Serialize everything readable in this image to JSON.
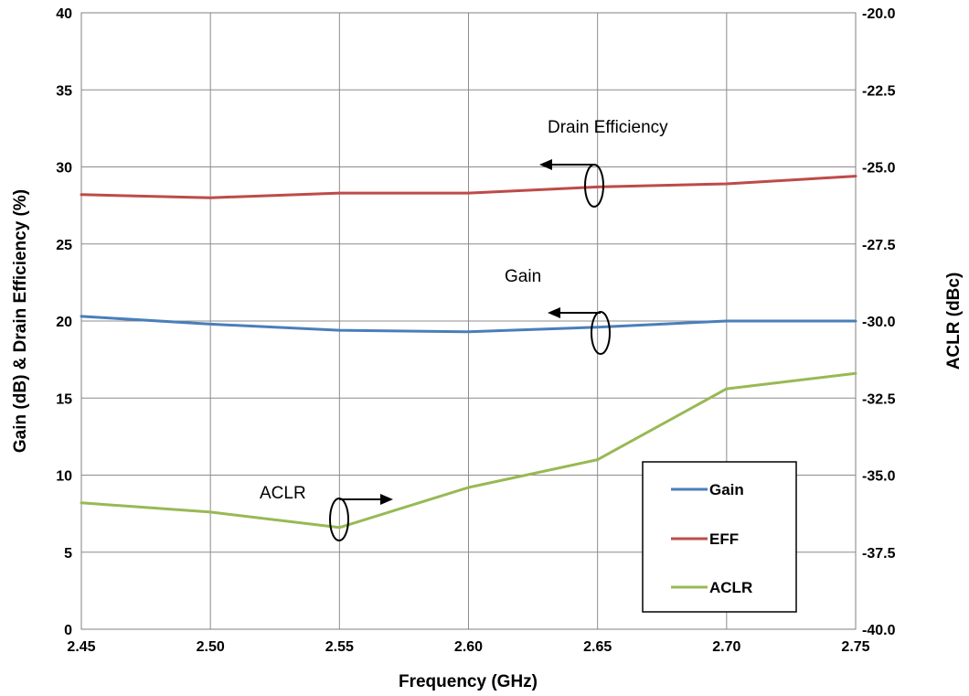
{
  "chart_data": {
    "type": "line",
    "title": "",
    "xlabel": "Frequency (GHz)",
    "ylabel": "Gain (dB) & Drain Efficiency (%)",
    "y2label": "ACLR (dBc)",
    "xlim": [
      2.45,
      2.75
    ],
    "ylim": [
      0,
      40
    ],
    "y2lim": [
      -40.0,
      -20.0
    ],
    "x_ticks": [
      "2.45",
      "2.50",
      "2.55",
      "2.60",
      "2.65",
      "2.70",
      "2.75"
    ],
    "y_ticks": [
      "0",
      "5",
      "10",
      "15",
      "20",
      "25",
      "30",
      "35",
      "40"
    ],
    "y2_ticks": [
      "-40.0",
      "-37.5",
      "-35.0",
      "-32.5",
      "-30.0",
      "-27.5",
      "-25.0",
      "-22.5",
      "-20.0"
    ],
    "grid": true,
    "legend_position": "bottom-right",
    "x": [
      2.45,
      2.5,
      2.55,
      2.6,
      2.65,
      2.7,
      2.75
    ],
    "series": [
      {
        "name": "Gain",
        "axis": "left",
        "color": "#4a7ebb",
        "values": [
          20.3,
          19.8,
          19.4,
          19.3,
          19.6,
          20.0,
          20.0
        ]
      },
      {
        "name": "EFF",
        "axis": "left",
        "color": "#be4b48",
        "values": [
          28.2,
          28.0,
          28.3,
          28.3,
          28.7,
          28.9,
          29.4
        ]
      },
      {
        "name": "ACLR",
        "axis": "right",
        "color": "#98b954",
        "values": [
          -35.9,
          -36.2,
          -36.7,
          -35.4,
          -34.5,
          -32.2,
          -31.7
        ]
      }
    ],
    "annotations": [
      {
        "text": "Drain Efficiency",
        "points_to": "left"
      },
      {
        "text": "Gain",
        "points_to": "left"
      },
      {
        "text": "ACLR",
        "points_to": "right"
      }
    ]
  }
}
